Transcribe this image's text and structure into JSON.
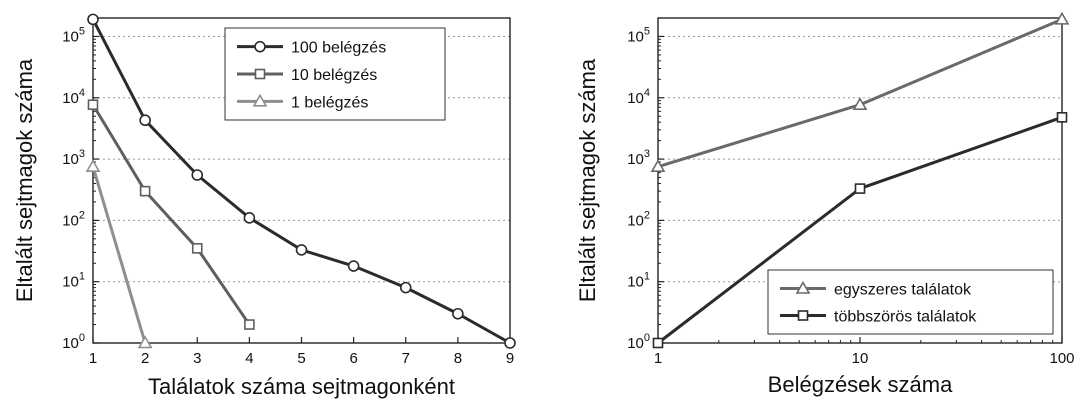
{
  "chart_data": [
    {
      "type": "line",
      "xlabel": "Találatok száma sejtmagonként",
      "ylabel": "Eltalált sejtmagok száma",
      "xscale": "linear",
      "yscale": "log",
      "xlim": [
        1,
        9
      ],
      "ylim": [
        1,
        200000
      ],
      "xticks": [
        "1",
        "2",
        "3",
        "4",
        "5",
        "6",
        "7",
        "8",
        "9"
      ],
      "yticks": [
        {
          "base": "10",
          "exp": "0"
        },
        {
          "base": "10",
          "exp": "1"
        },
        {
          "base": "10",
          "exp": "2"
        },
        {
          "base": "10",
          "exp": "3"
        },
        {
          "base": "10",
          "exp": "4"
        },
        {
          "base": "10",
          "exp": "5"
        }
      ],
      "grid": "horizontal dotted",
      "legend_position": "top-right",
      "series": [
        {
          "name": "100 belégzés",
          "marker": "circle",
          "color": "#2b2b2b",
          "x": [
            1,
            2,
            3,
            4,
            5,
            6,
            7,
            8,
            9
          ],
          "y": [
            190000,
            4300,
            550,
            110,
            33,
            18,
            8,
            3,
            1
          ]
        },
        {
          "name": "10 belégzés",
          "marker": "square",
          "color": "#5f5f5f",
          "x": [
            1,
            2,
            3,
            4
          ],
          "y": [
            7700,
            300,
            35,
            2
          ]
        },
        {
          "name": "1 belégzés",
          "marker": "triangle",
          "color": "#8e8e8e",
          "x": [
            1,
            2
          ],
          "y": [
            750,
            1
          ]
        }
      ]
    },
    {
      "type": "line",
      "xlabel": "Belégzések száma",
      "ylabel": "Eltalált sejtmagok száma",
      "xscale": "log",
      "yscale": "log",
      "xlim": [
        1,
        100
      ],
      "ylim": [
        1,
        200000
      ],
      "xticks": [
        "1",
        "10",
        "100"
      ],
      "yticks": [
        {
          "base": "10",
          "exp": "0"
        },
        {
          "base": "10",
          "exp": "1"
        },
        {
          "base": "10",
          "exp": "2"
        },
        {
          "base": "10",
          "exp": "3"
        },
        {
          "base": "10",
          "exp": "4"
        },
        {
          "base": "10",
          "exp": "5"
        }
      ],
      "grid": "horizontal dotted",
      "legend_position": "bottom-right",
      "series": [
        {
          "name": "egyszeres találatok",
          "marker": "triangle",
          "color": "#6a6a6a",
          "x": [
            1,
            10,
            100
          ],
          "y": [
            750,
            7700,
            190000
          ]
        },
        {
          "name": "többszörös találatok",
          "marker": "square",
          "color": "#2b2b2b",
          "x": [
            1,
            10,
            100
          ],
          "y": [
            1,
            330,
            4800
          ]
        }
      ]
    }
  ]
}
